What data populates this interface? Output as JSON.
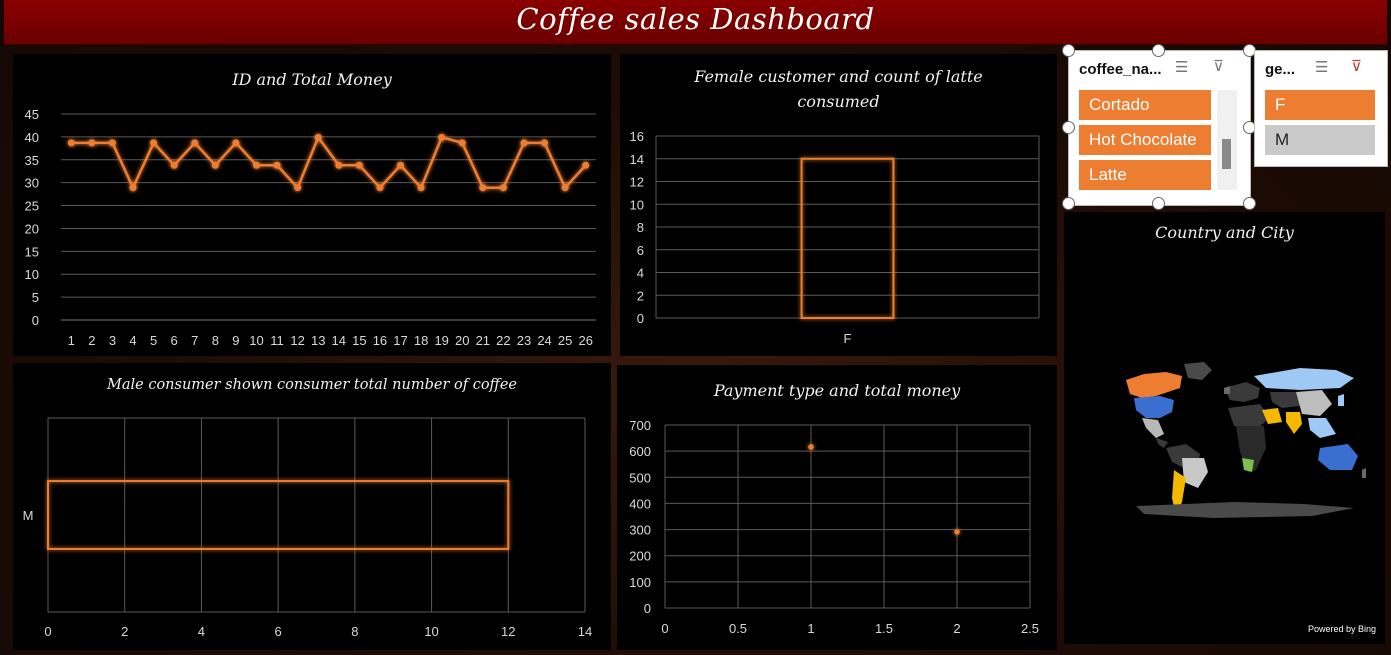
{
  "dashboard": {
    "title": "Coffee sales Dashboard"
  },
  "slicers": {
    "coffee": {
      "header": "coffee_na...",
      "items": [
        "Cortado",
        "Hot Chocolate",
        "Latte"
      ]
    },
    "gender": {
      "header": "ge...",
      "items": [
        "F",
        "M"
      ]
    }
  },
  "map": {
    "title": "Country and City",
    "credit": "Powered by Bing"
  },
  "colors": {
    "accent": "#ed7d31",
    "titlebar": "#7a0000",
    "grid": "#555555"
  },
  "chart_data": [
    {
      "type": "line",
      "title": "ID and Total Money",
      "x": [
        1,
        2,
        3,
        4,
        5,
        6,
        7,
        8,
        9,
        10,
        11,
        12,
        13,
        14,
        15,
        16,
        17,
        18,
        19,
        20,
        21,
        22,
        23,
        24,
        25,
        26
      ],
      "values": [
        38.7,
        38.7,
        38.7,
        28.9,
        38.7,
        33.8,
        38.7,
        33.8,
        38.7,
        33.8,
        33.8,
        28.9,
        39.9,
        33.8,
        33.8,
        28.9,
        33.8,
        28.9,
        39.9,
        38.7,
        28.9,
        28.9,
        38.7,
        38.7,
        28.9,
        33.8
      ],
      "ylim": [
        0,
        45
      ],
      "yticks": [
        0,
        5,
        10,
        15,
        20,
        25,
        30,
        35,
        40,
        45
      ]
    },
    {
      "type": "bar",
      "title": "Female customer and count of latte consumed",
      "categories": [
        "F"
      ],
      "values": [
        14
      ],
      "ylim": [
        0,
        16
      ],
      "yticks": [
        0,
        2,
        4,
        6,
        8,
        10,
        12,
        14,
        16
      ]
    },
    {
      "type": "bar",
      "orientation": "horizontal",
      "title": "Male consumer shown consumer total number of coffee",
      "categories": [
        "M"
      ],
      "values": [
        12
      ],
      "xlim": [
        0,
        14
      ],
      "xticks": [
        0,
        2,
        4,
        6,
        8,
        10,
        12,
        14
      ]
    },
    {
      "type": "scatter",
      "title": "Payment type and total money",
      "x": [
        1,
        2
      ],
      "y": [
        616,
        291
      ],
      "xlim": [
        0,
        2.5
      ],
      "ylim": [
        0,
        700
      ],
      "xticks": [
        0,
        0.5,
        1,
        1.5,
        2,
        2.5
      ],
      "yticks": [
        0,
        100,
        200,
        300,
        400,
        500,
        600,
        700
      ]
    }
  ]
}
